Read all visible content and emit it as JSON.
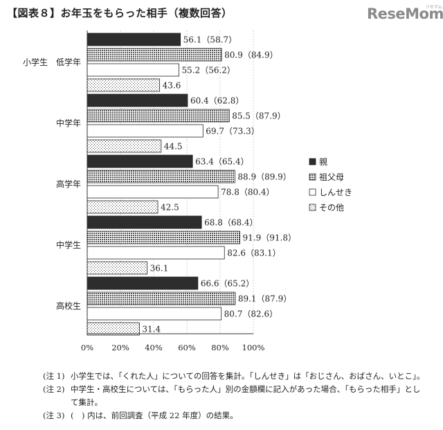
{
  "title": "【図表８】お年玉をもらった相手（複数回答）",
  "logo": {
    "text": "ReseMom",
    "subtext": "リセマム"
  },
  "chart_data": {
    "type": "bar",
    "orientation": "horizontal",
    "groups": [
      "小学生　低学年",
      "中学年",
      "高学年",
      "中学生",
      "高校生"
    ],
    "series": [
      {
        "name": "親",
        "values": [
          56.1,
          60.4,
          63.4,
          68.8,
          66.6
        ],
        "previous": [
          58.7,
          62.8,
          65.4,
          68.4,
          65.2
        ],
        "labels": [
          "56.1（58.7）",
          "60.4（62.8）",
          "63.4（65.4）",
          "68.8（68.4）",
          "66.6（65.2）"
        ]
      },
      {
        "name": "祖父母",
        "values": [
          80.9,
          85.5,
          88.9,
          91.9,
          89.1
        ],
        "previous": [
          84.9,
          87.9,
          89.9,
          91.8,
          87.9
        ],
        "labels": [
          "80.9（84.9）",
          "85.5（87.9）",
          "88.9（89.9）",
          "91.9（91.8）",
          "89.1（87.9）"
        ]
      },
      {
        "name": "しんせき",
        "values": [
          55.2,
          69.7,
          78.8,
          82.6,
          80.7
        ],
        "previous": [
          56.2,
          73.3,
          80.4,
          83.1,
          82.6
        ],
        "labels": [
          "55.2（56.2）",
          "69.7（73.3）",
          "78.8（80.4）",
          "82.6（83.1）",
          "80.7（82.6）"
        ]
      },
      {
        "name": "その他",
        "values": [
          43.6,
          44.5,
          42.5,
          36.1,
          31.4
        ],
        "previous": [
          null,
          null,
          null,
          null,
          null
        ],
        "labels": [
          "43.6",
          "44.5",
          "42.5",
          "36.1",
          "31.4"
        ]
      }
    ],
    "xlim": [
      0,
      100
    ],
    "xticks": [
      "0%",
      "20%",
      "40%",
      "60%",
      "80%",
      "100%"
    ],
    "legend_position": "right",
    "colors": {
      "親": "#2d2d2d",
      "祖父母": "#bdbdbd",
      "しんせき": "#ffffff",
      "その他": "#d0d0d0"
    }
  },
  "notes": [
    {
      "marker": "(注 1)",
      "lines": [
        "小学生では、「くれた人」についての回答を集計。「しんせき」は「おじさん、おばさん、いとこ」。"
      ]
    },
    {
      "marker": "(注 2)",
      "lines": [
        "中学生・高校生については、「もらった人」別の金額欄に記入があった場合、「もらった相手」とし",
        "て集計。"
      ]
    },
    {
      "marker": "(注 3)",
      "lines": [
        "(　) 内は、前回調査（平成 22 年度）の結果。"
      ]
    }
  ]
}
